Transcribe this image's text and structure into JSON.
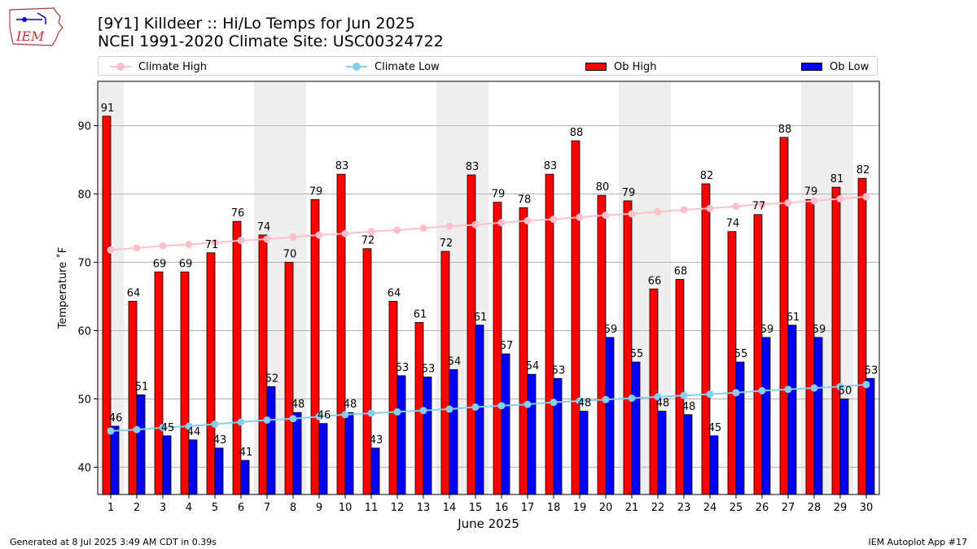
{
  "header": {
    "title_line1": "[9Y1] Killdeer :: Hi/Lo Temps for Jun 2025",
    "title_line2": "NCEI 1991-2020 Climate Site: USC00324722",
    "logo_text": "IEM"
  },
  "footer": {
    "generated": "Generated at 8 Jul 2025 3:49 AM CDT in 0.39s",
    "app": "IEM Autoplot App #17"
  },
  "colors": {
    "ob_high": "#ff0000",
    "ob_low": "#0000ff",
    "climate_high": "#ffc0cb",
    "climate_low": "#87ceeb",
    "weekend_shade": "#eeeeee",
    "grid": "#b0b0b0"
  },
  "chart_data": {
    "type": "bar",
    "xlabel": "June 2025",
    "ylabel": "Temperature ˚F",
    "ylim": [
      36,
      96.5
    ],
    "yticks": [
      40,
      50,
      60,
      70,
      80,
      90
    ],
    "grid": "horizontal",
    "legend_position": "top",
    "categories": [
      "1",
      "2",
      "3",
      "4",
      "5",
      "6",
      "7",
      "8",
      "9",
      "10",
      "11",
      "12",
      "13",
      "14",
      "15",
      "16",
      "17",
      "18",
      "19",
      "20",
      "21",
      "22",
      "23",
      "24",
      "25",
      "26",
      "27",
      "28",
      "29",
      "30"
    ],
    "shaded_days": [
      1,
      7,
      8,
      14,
      15,
      21,
      22,
      28,
      29
    ],
    "series": [
      {
        "name": "Climate High",
        "kind": "line",
        "values": [
          71.8,
          72.1,
          72.4,
          72.6,
          72.9,
          73.2,
          73.4,
          73.7,
          74.0,
          74.2,
          74.5,
          74.7,
          75.0,
          75.3,
          75.5,
          75.8,
          76.1,
          76.3,
          76.6,
          76.9,
          77.1,
          77.4,
          77.7,
          77.9,
          78.2,
          78.5,
          78.7,
          79.0,
          79.3,
          79.6
        ]
      },
      {
        "name": "Climate Low",
        "kind": "line",
        "values": [
          45.3,
          45.5,
          45.8,
          46.0,
          46.3,
          46.6,
          46.9,
          47.1,
          47.4,
          47.7,
          47.9,
          48.1,
          48.3,
          48.5,
          48.8,
          49.0,
          49.2,
          49.5,
          49.7,
          49.9,
          50.1,
          50.3,
          50.5,
          50.7,
          50.9,
          51.2,
          51.4,
          51.6,
          51.8,
          52.1
        ]
      },
      {
        "name": "Ob High",
        "kind": "bar",
        "values": [
          91.4,
          64.3,
          68.6,
          68.6,
          71.4,
          76.0,
          74.0,
          70.0,
          79.2,
          82.9,
          72.0,
          64.3,
          61.2,
          71.6,
          82.8,
          78.8,
          78.0,
          82.9,
          87.8,
          79.8,
          79.0,
          66.1,
          67.5,
          81.5,
          74.5,
          77.0,
          88.3,
          79.2,
          81.0,
          82.3
        ],
        "labels": [
          "91",
          "64",
          "69",
          "69",
          "71",
          "76",
          "74",
          "70",
          "79",
          "83",
          "72",
          "64",
          "61",
          "72",
          "83",
          "79",
          "78",
          "83",
          "88",
          "80",
          "79",
          "66",
          "68",
          "82",
          "74",
          "77",
          "88",
          "79",
          "81",
          "82"
        ]
      },
      {
        "name": "Ob Low",
        "kind": "bar",
        "values": [
          46.0,
          50.6,
          44.6,
          44.0,
          42.8,
          41.0,
          51.8,
          48.0,
          46.4,
          48.0,
          42.8,
          53.4,
          53.2,
          54.3,
          60.8,
          56.6,
          53.6,
          53.0,
          48.2,
          59.0,
          55.4,
          48.2,
          47.7,
          44.6,
          55.4,
          59.0,
          60.8,
          59.0,
          50.0,
          53.0
        ],
        "labels": [
          "46",
          "51",
          "45",
          "44",
          "43",
          "41",
          "52",
          "48",
          "46",
          "48",
          "43",
          "53",
          "53",
          "54",
          "61",
          "57",
          "54",
          "53",
          "48",
          "59",
          "55",
          "48",
          "48",
          "45",
          "55",
          "59",
          "61",
          "59",
          "50",
          "53"
        ]
      }
    ]
  }
}
